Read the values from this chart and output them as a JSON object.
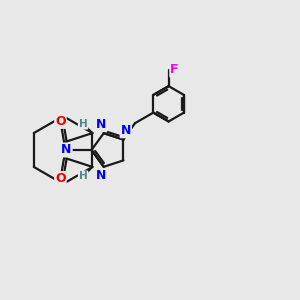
{
  "background_color": "#e8e8e8",
  "bond_color": "#1a1a1a",
  "atom_colors": {
    "N": "#0000ee",
    "O": "#ee0000",
    "F": "#ee00ee",
    "H": "#4a8a8a",
    "C": "#1a1a1a"
  },
  "figsize": [
    3.0,
    3.0
  ],
  "dpi": 100,
  "lw": 1.6
}
